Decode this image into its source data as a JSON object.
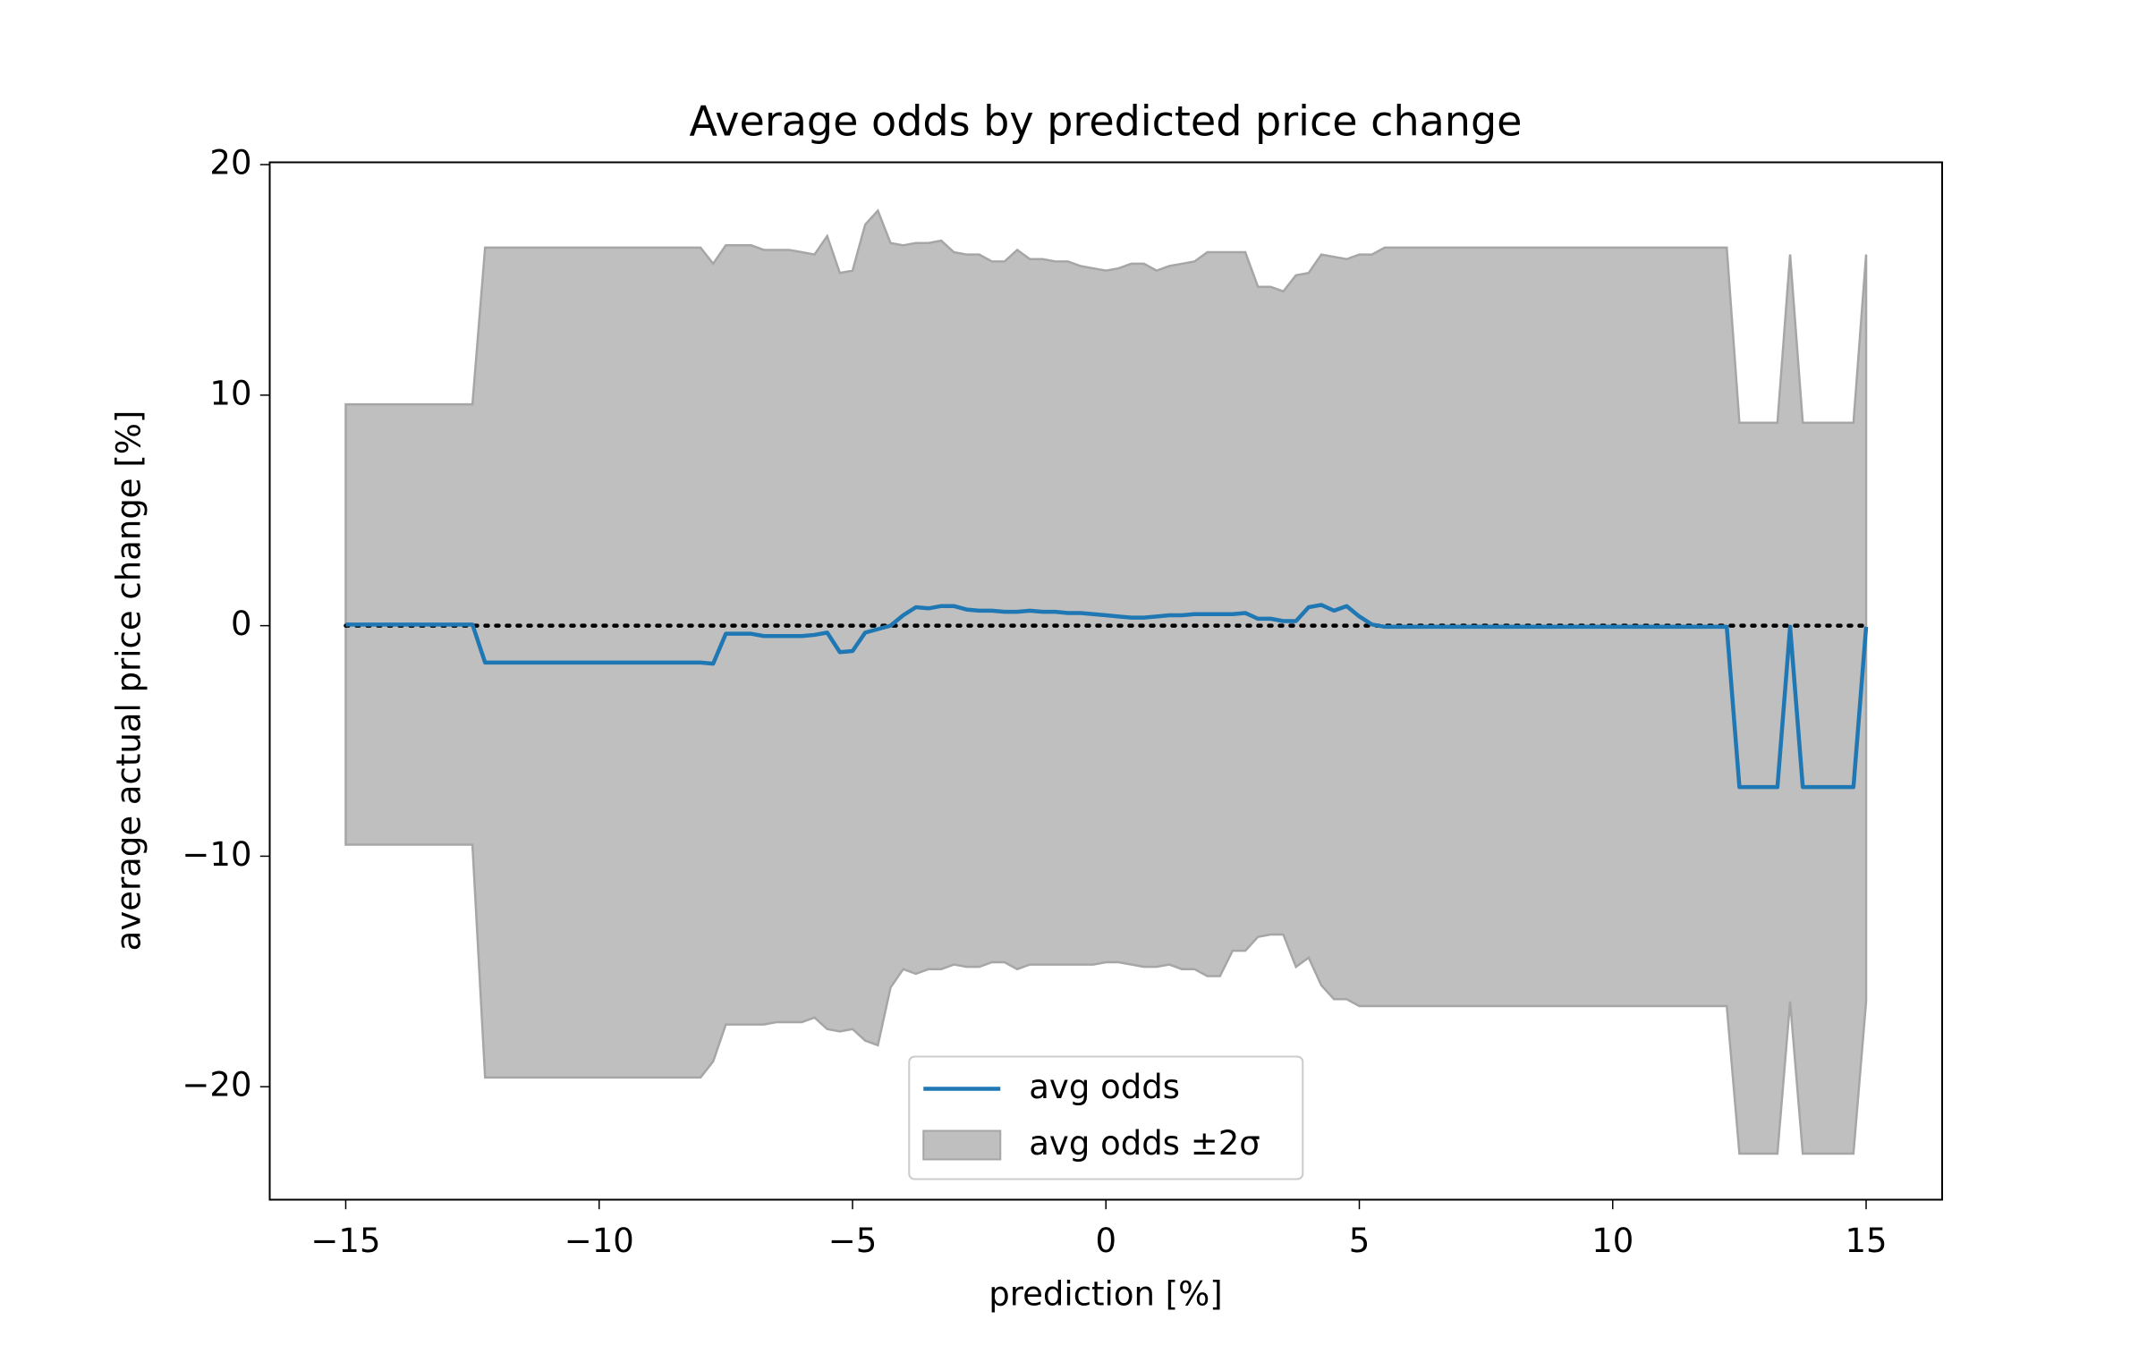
{
  "chart_data": {
    "type": "line_band",
    "title": "Average odds by predicted price change",
    "xlabel": "prediction [%]",
    "ylabel": "average actual price change [%]",
    "x": [
      -15,
      -14.75,
      -14.5,
      -14.25,
      -14,
      -13.75,
      -13.5,
      -13.25,
      -13,
      -12.75,
      -12.5,
      -12.25,
      -12,
      -11.75,
      -11.5,
      -11.25,
      -11,
      -10.75,
      -10.5,
      -10.25,
      -10,
      -9.75,
      -9.5,
      -9.25,
      -9,
      -8.75,
      -8.5,
      -8.25,
      -8,
      -7.75,
      -7.5,
      -7.25,
      -7,
      -6.75,
      -6.5,
      -6.25,
      -6,
      -5.75,
      -5.5,
      -5.25,
      -5,
      -4.75,
      -4.5,
      -4.25,
      -4,
      -3.75,
      -3.5,
      -3.25,
      -3,
      -2.75,
      -2.5,
      -2.25,
      -2,
      -1.75,
      -1.5,
      -1.25,
      -1,
      -0.75,
      -0.5,
      -0.25,
      0,
      0.25,
      0.5,
      0.75,
      1,
      1.25,
      1.5,
      1.75,
      2,
      2.25,
      2.5,
      2.75,
      3,
      3.25,
      3.5,
      3.75,
      4,
      4.25,
      4.5,
      4.75,
      5,
      5.25,
      5.5,
      5.75,
      6,
      6.25,
      6.5,
      6.75,
      7,
      7.25,
      7.5,
      7.75,
      8,
      8.25,
      8.5,
      8.75,
      9,
      9.25,
      9.5,
      9.75,
      10,
      10.25,
      10.5,
      10.75,
      11,
      11.25,
      11.5,
      11.75,
      12,
      12.25,
      12.5,
      12.75,
      13,
      13.25,
      13.5,
      13.75,
      14,
      14.25,
      14.5,
      14.75,
      15
    ],
    "series": [
      {
        "name": "avg odds",
        "color": "#1f77b4",
        "values": [
          0.05,
          0.05,
          0.05,
          0.05,
          0.05,
          0.05,
          0.05,
          0.05,
          0.05,
          0.05,
          0.05,
          -1.6,
          -1.6,
          -1.6,
          -1.6,
          -1.6,
          -1.6,
          -1.6,
          -1.6,
          -1.6,
          -1.6,
          -1.6,
          -1.6,
          -1.6,
          -1.6,
          -1.6,
          -1.6,
          -1.6,
          -1.6,
          -1.65,
          -0.35,
          -0.35,
          -0.35,
          -0.45,
          -0.45,
          -0.45,
          -0.45,
          -0.4,
          -0.3,
          -1.15,
          -1.1,
          -0.3,
          -0.15,
          0.0,
          0.45,
          0.8,
          0.75,
          0.85,
          0.85,
          0.7,
          0.65,
          0.65,
          0.6,
          0.6,
          0.65,
          0.6,
          0.6,
          0.55,
          0.55,
          0.5,
          0.45,
          0.4,
          0.35,
          0.35,
          0.4,
          0.45,
          0.45,
          0.5,
          0.5,
          0.5,
          0.5,
          0.55,
          0.3,
          0.3,
          0.2,
          0.2,
          0.8,
          0.9,
          0.65,
          0.85,
          0.4,
          0.05,
          -0.05,
          -0.05,
          -0.05,
          -0.05,
          -0.05,
          -0.05,
          -0.05,
          -0.05,
          -0.05,
          -0.05,
          -0.05,
          -0.05,
          -0.05,
          -0.05,
          -0.05,
          -0.05,
          -0.05,
          -0.05,
          -0.05,
          -0.05,
          -0.05,
          -0.05,
          -0.05,
          -0.05,
          -0.05,
          -0.05,
          -0.05,
          -0.05,
          -7,
          -7,
          -7,
          -7,
          -0.05,
          -7,
          -7,
          -7,
          -7,
          -7,
          -0.05
        ]
      },
      {
        "name": "avg odds ±2σ",
        "color": "#bfbfbf",
        "edge_color": "#a6a6a6",
        "upper": [
          9.6,
          9.6,
          9.6,
          9.6,
          9.6,
          9.6,
          9.6,
          9.6,
          9.6,
          9.6,
          9.6,
          16.4,
          16.4,
          16.4,
          16.4,
          16.4,
          16.4,
          16.4,
          16.4,
          16.4,
          16.4,
          16.4,
          16.4,
          16.4,
          16.4,
          16.4,
          16.4,
          16.4,
          16.4,
          15.7,
          16.5,
          16.5,
          16.5,
          16.3,
          16.3,
          16.3,
          16.2,
          16.1,
          16.9,
          15.3,
          15.4,
          17.4,
          18.0,
          16.6,
          16.5,
          16.6,
          16.6,
          16.7,
          16.2,
          16.1,
          16.1,
          15.8,
          15.8,
          16.3,
          15.9,
          15.9,
          15.8,
          15.8,
          15.6,
          15.5,
          15.4,
          15.5,
          15.7,
          15.7,
          15.4,
          15.6,
          15.7,
          15.8,
          16.2,
          16.2,
          16.2,
          16.2,
          14.7,
          14.7,
          14.5,
          15.2,
          15.3,
          16.1,
          16.0,
          15.9,
          16.1,
          16.1,
          16.4,
          16.4,
          16.4,
          16.4,
          16.4,
          16.4,
          16.4,
          16.4,
          16.4,
          16.4,
          16.4,
          16.4,
          16.4,
          16.4,
          16.4,
          16.4,
          16.4,
          16.4,
          16.4,
          16.4,
          16.4,
          16.4,
          16.4,
          16.4,
          16.4,
          16.4,
          16.4,
          16.4,
          8.8,
          8.8,
          8.8,
          8.8,
          16.1,
          8.8,
          8.8,
          8.8,
          8.8,
          8.8,
          16.1
        ],
        "lower": [
          -9.5,
          -9.5,
          -9.5,
          -9.5,
          -9.5,
          -9.5,
          -9.5,
          -9.5,
          -9.5,
          -9.5,
          -9.5,
          -19.6,
          -19.6,
          -19.6,
          -19.6,
          -19.6,
          -19.6,
          -19.6,
          -19.6,
          -19.6,
          -19.6,
          -19.6,
          -19.6,
          -19.6,
          -19.6,
          -19.6,
          -19.6,
          -19.6,
          -19.6,
          -18.9,
          -17.3,
          -17.3,
          -17.3,
          -17.3,
          -17.2,
          -17.2,
          -17.2,
          -17.0,
          -17.5,
          -17.6,
          -17.5,
          -18.0,
          -18.2,
          -15.7,
          -14.9,
          -15.1,
          -14.9,
          -14.9,
          -14.7,
          -14.8,
          -14.8,
          -14.6,
          -14.6,
          -14.9,
          -14.7,
          -14.7,
          -14.7,
          -14.7,
          -14.7,
          -14.7,
          -14.6,
          -14.6,
          -14.7,
          -14.8,
          -14.8,
          -14.7,
          -14.9,
          -14.9,
          -15.2,
          -15.2,
          -14.1,
          -14.1,
          -13.5,
          -13.4,
          -13.4,
          -14.8,
          -14.4,
          -15.6,
          -16.2,
          -16.2,
          -16.5,
          -16.5,
          -16.5,
          -16.5,
          -16.5,
          -16.5,
          -16.5,
          -16.5,
          -16.5,
          -16.5,
          -16.5,
          -16.5,
          -16.5,
          -16.5,
          -16.5,
          -16.5,
          -16.5,
          -16.5,
          -16.5,
          -16.5,
          -16.5,
          -16.5,
          -16.5,
          -16.5,
          -16.5,
          -16.5,
          -16.5,
          -16.5,
          -16.5,
          -16.5,
          -22.9,
          -22.9,
          -22.9,
          -22.9,
          -16.3,
          -22.9,
          -22.9,
          -22.9,
          -22.9,
          -22.9,
          -16.3
        ]
      }
    ],
    "reference_line": {
      "value": 0,
      "style": "dotted",
      "color": "#000000"
    },
    "xlim": [
      -16.5,
      16.5
    ],
    "ylim": [
      -24.9,
      20.1
    ],
    "xticks": [
      {
        "value": -15,
        "label": "−15"
      },
      {
        "value": -10,
        "label": "−10"
      },
      {
        "value": -5,
        "label": "−5"
      },
      0,
      5,
      10,
      15
    ],
    "yticks": [
      {
        "value": -20,
        "label": "−20"
      },
      {
        "value": -10,
        "label": "−10"
      },
      0,
      10,
      20
    ],
    "grid": false,
    "legend": "lower center"
  }
}
